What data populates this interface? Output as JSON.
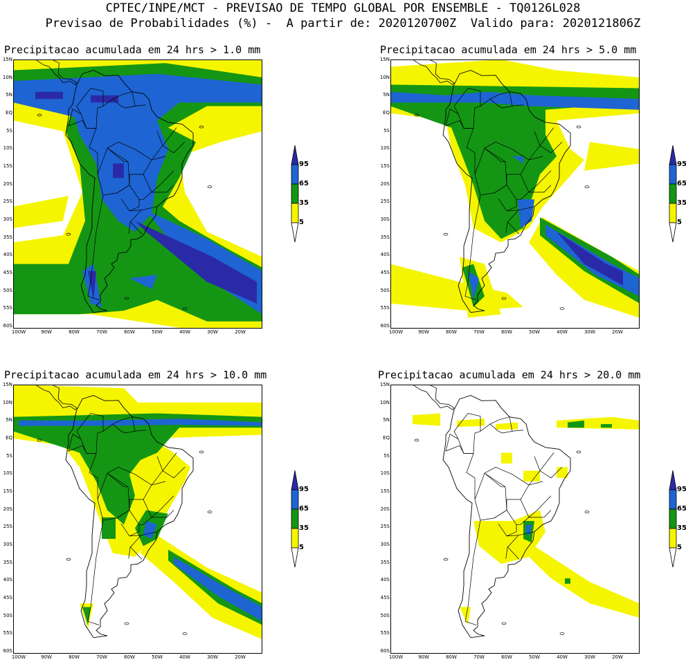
{
  "header": {
    "line1": "CPTEC/INPE/MCT - PREVISAO DE TEMPO GLOBAL POR ENSEMBLE - TQ0126L028",
    "line2": "Previsao de Probabilidades (%) -  A partir de: 2020120700Z  Valido para: 2020121806Z"
  },
  "panels": [
    {
      "title": "Precipitacao acumulada em 24 hrs > 1.0 mm",
      "threshold_mm": 1.0
    },
    {
      "title": "Precipitacao acumulada em 24 hrs > 5.0 mm",
      "threshold_mm": 5.0
    },
    {
      "title": "Precipitacao acumulada em 24 hrs > 10.0 mm",
      "threshold_mm": 10.0
    },
    {
      "title": "Precipitacao acumulada em 24 hrs > 20.0 mm",
      "threshold_mm": 20.0
    }
  ],
  "lat_labels": [
    "15N",
    "10N",
    "5N",
    "EQ",
    "5S",
    "10S",
    "15S",
    "20S",
    "25S",
    "30S",
    "35S",
    "40S",
    "45S",
    "50S",
    "55S",
    "60S"
  ],
  "lon_labels": [
    "100W",
    "90W",
    "80W",
    "70W",
    "60W",
    "50W",
    "40W",
    "30W",
    "20W"
  ],
  "legend": {
    "levels": [
      "95",
      "65",
      "35",
      "5"
    ],
    "colors": {
      "c95": "#2a2aa8",
      "c65": "#1e64d2",
      "c35": "#149614",
      "c5": "#f5f500",
      "base": "#ffffff"
    }
  },
  "map_colors": {
    "yellow": "#f5f500",
    "green": "#149614",
    "blue": "#1e64d2",
    "darkblue": "#2a2aa8"
  }
}
